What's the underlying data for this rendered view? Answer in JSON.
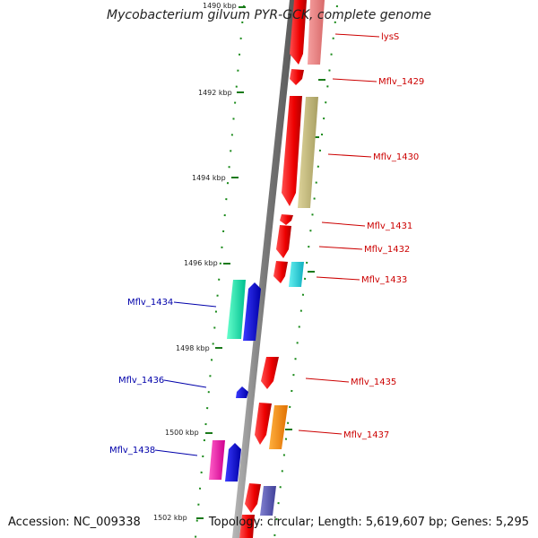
{
  "title": "Mycobacterium gilvum PYR-GCK, complete genome",
  "footer": {
    "accession": "Accession: NC_009338",
    "stats": "Topology: circular; Length: 5,619,607 bp; Genes: 5,295"
  },
  "colors": {
    "forward_label": "#cc0000",
    "reverse_label": "#0000aa",
    "backbone": "#8a8a8a",
    "tick": "#1a7a1a"
  },
  "kbp_labels": [
    "1490 kbp",
    "1492 kbp",
    "1494 kbp",
    "1496 kbp",
    "1498 kbp",
    "1500 kbp",
    "1502 kbp"
  ],
  "gene_labels": [
    {
      "text": "lysS",
      "strand": "forward"
    },
    {
      "text": "Mflv_1429",
      "strand": "forward"
    },
    {
      "text": "Mflv_1430",
      "strand": "forward"
    },
    {
      "text": "Mflv_1431",
      "strand": "forward"
    },
    {
      "text": "Mflv_1432",
      "strand": "forward"
    },
    {
      "text": "Mflv_1433",
      "strand": "forward"
    },
    {
      "text": "Mflv_1434",
      "strand": "reverse"
    },
    {
      "text": "Mflv_1435",
      "strand": "forward"
    },
    {
      "text": "Mflv_1436",
      "strand": "reverse"
    },
    {
      "text": "Mflv_1437",
      "strand": "forward"
    },
    {
      "text": "Mflv_1438",
      "strand": "reverse"
    }
  ]
}
